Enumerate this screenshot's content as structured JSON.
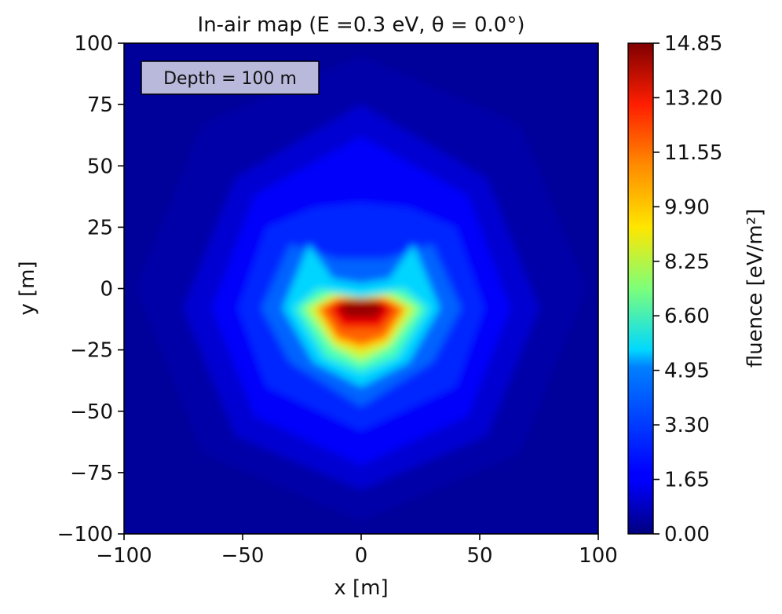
{
  "chart_data": {
    "type": "heatmap",
    "title": "In-air map (E =0.3 eV, θ = 0.0°)",
    "xlabel": "x [m]",
    "ylabel": "y [m]",
    "xlim": [
      -100,
      100
    ],
    "ylim": [
      -100,
      100
    ],
    "x_ticks": [
      "−100",
      "−50",
      "0",
      "50",
      "100"
    ],
    "y_ticks": [
      "−100",
      "−75",
      "−50",
      "−25",
      "0",
      "25",
      "50",
      "75",
      "100"
    ],
    "x_tick_values": [
      -100,
      -50,
      0,
      50,
      100
    ],
    "y_tick_values": [
      -100,
      -75,
      -50,
      -25,
      0,
      25,
      50,
      75,
      100
    ],
    "annotation": "Depth = 100 m",
    "colorbar": {
      "label": "fluence [eV/m²]",
      "colormap": "jet",
      "min": 0.0,
      "max": 14.85,
      "ticks": [
        "0.00",
        "1.65",
        "3.30",
        "4.95",
        "6.60",
        "8.25",
        "9.90",
        "11.55",
        "13.20",
        "14.85"
      ],
      "tick_values": [
        0.0,
        1.65,
        3.3,
        4.95,
        6.6,
        8.25,
        9.9,
        11.55,
        13.2,
        14.85
      ]
    },
    "contours": [
      {
        "level": 0.6,
        "points": [
          [
            -95,
            0
          ],
          [
            -67,
            67
          ],
          [
            0,
            95
          ],
          [
            67,
            67
          ],
          [
            95,
            0
          ],
          [
            67,
            -67
          ],
          [
            0,
            -95
          ],
          [
            -67,
            -67
          ]
        ]
      },
      {
        "level": 1.2,
        "points": [
          [
            -75,
            -8
          ],
          [
            -53,
            45
          ],
          [
            0,
            75
          ],
          [
            53,
            45
          ],
          [
            75,
            -8
          ],
          [
            53,
            -60
          ],
          [
            0,
            -82
          ],
          [
            -53,
            -60
          ]
        ]
      },
      {
        "level": 1.8,
        "points": [
          [
            -63,
            -8
          ],
          [
            -45,
            38
          ],
          [
            0,
            62
          ],
          [
            45,
            38
          ],
          [
            63,
            -8
          ],
          [
            45,
            -52
          ],
          [
            0,
            -72
          ],
          [
            -45,
            -52
          ]
        ]
      },
      {
        "level": 2.4,
        "points": [
          [
            -52,
            -8
          ],
          [
            -40,
            25
          ],
          [
            -20,
            33
          ],
          [
            0,
            35
          ],
          [
            20,
            33
          ],
          [
            40,
            25
          ],
          [
            52,
            -8
          ],
          [
            40,
            -40
          ],
          [
            0,
            -58
          ],
          [
            -40,
            -40
          ]
        ]
      },
      {
        "level": 3.3,
        "points": [
          [
            -42,
            -8
          ],
          [
            -30,
            18
          ],
          [
            -10,
            12
          ],
          [
            0,
            12
          ],
          [
            10,
            12
          ],
          [
            30,
            18
          ],
          [
            42,
            -8
          ],
          [
            30,
            -30
          ],
          [
            0,
            -48
          ],
          [
            -30,
            -30
          ]
        ]
      },
      {
        "level": 4.95,
        "points": [
          [
            -33,
            -8
          ],
          [
            -22,
            18
          ],
          [
            -12,
            4
          ],
          [
            0,
            2
          ],
          [
            12,
            4
          ],
          [
            22,
            18
          ],
          [
            33,
            -8
          ],
          [
            20,
            -30
          ],
          [
            0,
            -40
          ],
          [
            -20,
            -30
          ]
        ]
      },
      {
        "level": 6.6,
        "points": [
          [
            -28,
            -8
          ],
          [
            -18,
            0
          ],
          [
            0,
            -3
          ],
          [
            18,
            0
          ],
          [
            28,
            -8
          ],
          [
            15,
            -28
          ],
          [
            0,
            -34
          ],
          [
            -15,
            -28
          ]
        ]
      },
      {
        "level": 8.25,
        "points": [
          [
            -24,
            -8
          ],
          [
            -13,
            -2
          ],
          [
            0,
            -4
          ],
          [
            13,
            -2
          ],
          [
            24,
            -8
          ],
          [
            12,
            -24
          ],
          [
            0,
            -30
          ],
          [
            -12,
            -24
          ]
        ]
      },
      {
        "level": 9.9,
        "points": [
          [
            -20,
            -8
          ],
          [
            -10,
            -3
          ],
          [
            0,
            -4
          ],
          [
            10,
            -3
          ],
          [
            20,
            -8
          ],
          [
            11,
            -22
          ],
          [
            0,
            -26
          ],
          [
            -11,
            -22
          ]
        ]
      },
      {
        "level": 11.55,
        "points": [
          [
            -18,
            -8
          ],
          [
            -10,
            -4
          ],
          [
            10,
            -4
          ],
          [
            18,
            -8
          ],
          [
            10,
            -20
          ],
          [
            0,
            -23
          ],
          [
            -10,
            -20
          ]
        ]
      },
      {
        "level": 13.2,
        "points": [
          [
            -14,
            -8
          ],
          [
            -8,
            -4
          ],
          [
            8,
            -4
          ],
          [
            14,
            -8
          ],
          [
            8,
            -16
          ],
          [
            -8,
            -16
          ]
        ]
      },
      {
        "level": 14.5,
        "points": [
          [
            -10,
            -8
          ],
          [
            -6,
            -5
          ],
          [
            6,
            -5
          ],
          [
            10,
            -8
          ],
          [
            6,
            -12
          ],
          [
            -6,
            -12
          ]
        ]
      }
    ]
  }
}
